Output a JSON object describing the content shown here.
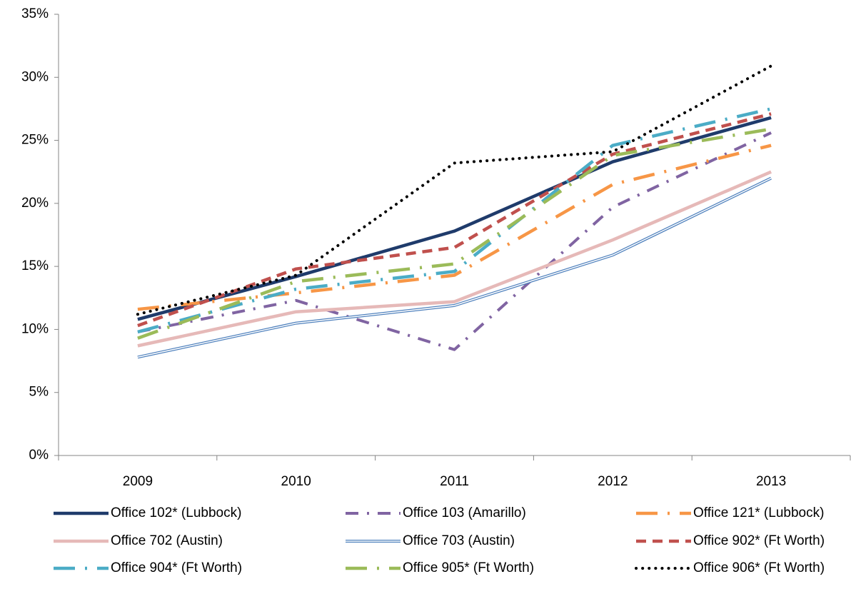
{
  "chart_data": {
    "type": "line",
    "categories": [
      "2009",
      "2010",
      "2011",
      "2012",
      "2013"
    ],
    "series": [
      {
        "name": "Office 102* (Lubbock)",
        "color": "#1f3b6b",
        "style": "solid-thick",
        "values": [
          10.8,
          14.2,
          17.8,
          23.3,
          26.8
        ]
      },
      {
        "name": "Office 103 (Amarillo)",
        "color": "#8064a2",
        "style": "dash-dot",
        "values": [
          9.8,
          12.3,
          8.4,
          19.7,
          25.6
        ]
      },
      {
        "name": "Office 121* (Lubbock)",
        "color": "#f79646",
        "style": "long-dash-dot",
        "values": [
          11.6,
          12.9,
          14.3,
          21.5,
          24.6
        ]
      },
      {
        "name": "Office 702 (Austin)",
        "color": "#e6b9b8",
        "style": "solid-thick",
        "values": [
          8.7,
          11.4,
          12.2,
          17.1,
          22.5
        ]
      },
      {
        "name": "Office 703 (Austin)",
        "color": "#4f81bd",
        "style": "double",
        "values": [
          7.8,
          10.5,
          11.9,
          15.9,
          22.0
        ]
      },
      {
        "name": "Office 902* (Ft Worth)",
        "color": "#c0504d",
        "style": "dash",
        "values": [
          10.3,
          14.8,
          16.5,
          23.9,
          27.1
        ]
      },
      {
        "name": "Office 904* (Ft Worth)",
        "color": "#4bacc6",
        "style": "long-dash-dot",
        "values": [
          9.8,
          13.2,
          14.6,
          24.6,
          27.5
        ]
      },
      {
        "name": "Office 905* (Ft Worth)",
        "color": "#9bbb59",
        "style": "long-dash-dot",
        "values": [
          9.3,
          13.8,
          15.2,
          23.8,
          25.9
        ]
      },
      {
        "name": "Office 906* (Ft Worth)",
        "color": "#000000",
        "style": "dot",
        "values": [
          11.2,
          14.3,
          23.2,
          24.1,
          30.9
        ]
      }
    ],
    "ylim": [
      0,
      35
    ],
    "yticks": [
      {
        "value": 0,
        "label": "0%"
      },
      {
        "value": 5,
        "label": "5%"
      },
      {
        "value": 10,
        "label": "10%"
      },
      {
        "value": 15,
        "label": "15%"
      },
      {
        "value": 20,
        "label": "20%"
      },
      {
        "value": 25,
        "label": "25%"
      },
      {
        "value": 30,
        "label": "30%"
      },
      {
        "value": 35,
        "label": "35%"
      }
    ],
    "legend": "bottom"
  }
}
